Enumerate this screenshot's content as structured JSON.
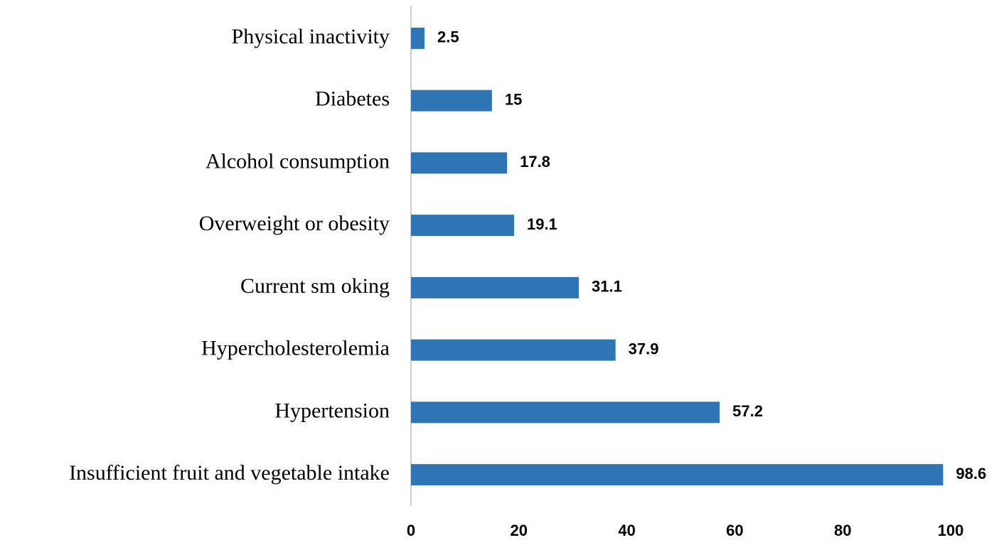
{
  "chart_data": {
    "type": "bar",
    "orientation": "horizontal",
    "categories": [
      "Physical inactivity",
      "Diabetes",
      "Alcohol consumption",
      "Overweight or obesity",
      "Current sm oking",
      "Hypercholesterolemia",
      "Hypertension",
      "Insufficient fruit and vegetable intake"
    ],
    "values": [
      2.5,
      15,
      17.8,
      19.1,
      31.1,
      37.9,
      57.2,
      98.6
    ],
    "color": "#2e75b6",
    "xlim": [
      0,
      100
    ],
    "xticks": [
      0,
      20,
      40,
      60,
      80,
      100
    ],
    "grid": false
  }
}
